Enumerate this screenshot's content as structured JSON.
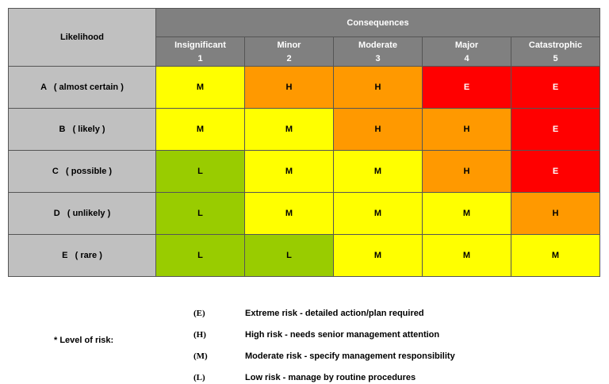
{
  "table": {
    "corner": "Likelihood",
    "group_header": "Consequences",
    "columns": [
      {
        "name": "Insignificant",
        "number": "1"
      },
      {
        "name": "Minor",
        "number": "2"
      },
      {
        "name": "Moderate",
        "number": "3"
      },
      {
        "name": "Major",
        "number": "4"
      },
      {
        "name": "Catastrophic",
        "number": "5"
      }
    ],
    "rows": [
      {
        "label": "A   ( almost certain )",
        "cells": [
          "M",
          "H",
          "H",
          "E",
          "E"
        ]
      },
      {
        "label": "B   ( likely )",
        "cells": [
          "M",
          "M",
          "H",
          "H",
          "E"
        ]
      },
      {
        "label": "C   ( possible )",
        "cells": [
          "L",
          "M",
          "M",
          "H",
          "E"
        ]
      },
      {
        "label": "D   ( unlikely )",
        "cells": [
          "L",
          "M",
          "M",
          "M",
          "H"
        ]
      },
      {
        "label": "E   ( rare )",
        "cells": [
          "L",
          "L",
          "M",
          "M",
          "M"
        ]
      }
    ],
    "level_colors": {
      "E": "#ff0000",
      "H": "#ff9900",
      "M": "#ffff00",
      "L": "#99cc00"
    }
  },
  "legend": {
    "title": "* Level of risk:",
    "items": [
      {
        "code": "(E)",
        "text": "Extreme risk - detailed action/plan required"
      },
      {
        "code": "(H)",
        "text": "High risk - needs senior management attention"
      },
      {
        "code": "(M)",
        "text": "Moderate risk - specify management responsibility"
      },
      {
        "code": "(L)",
        "text": "Low risk - manage by routine procedures"
      }
    ]
  }
}
